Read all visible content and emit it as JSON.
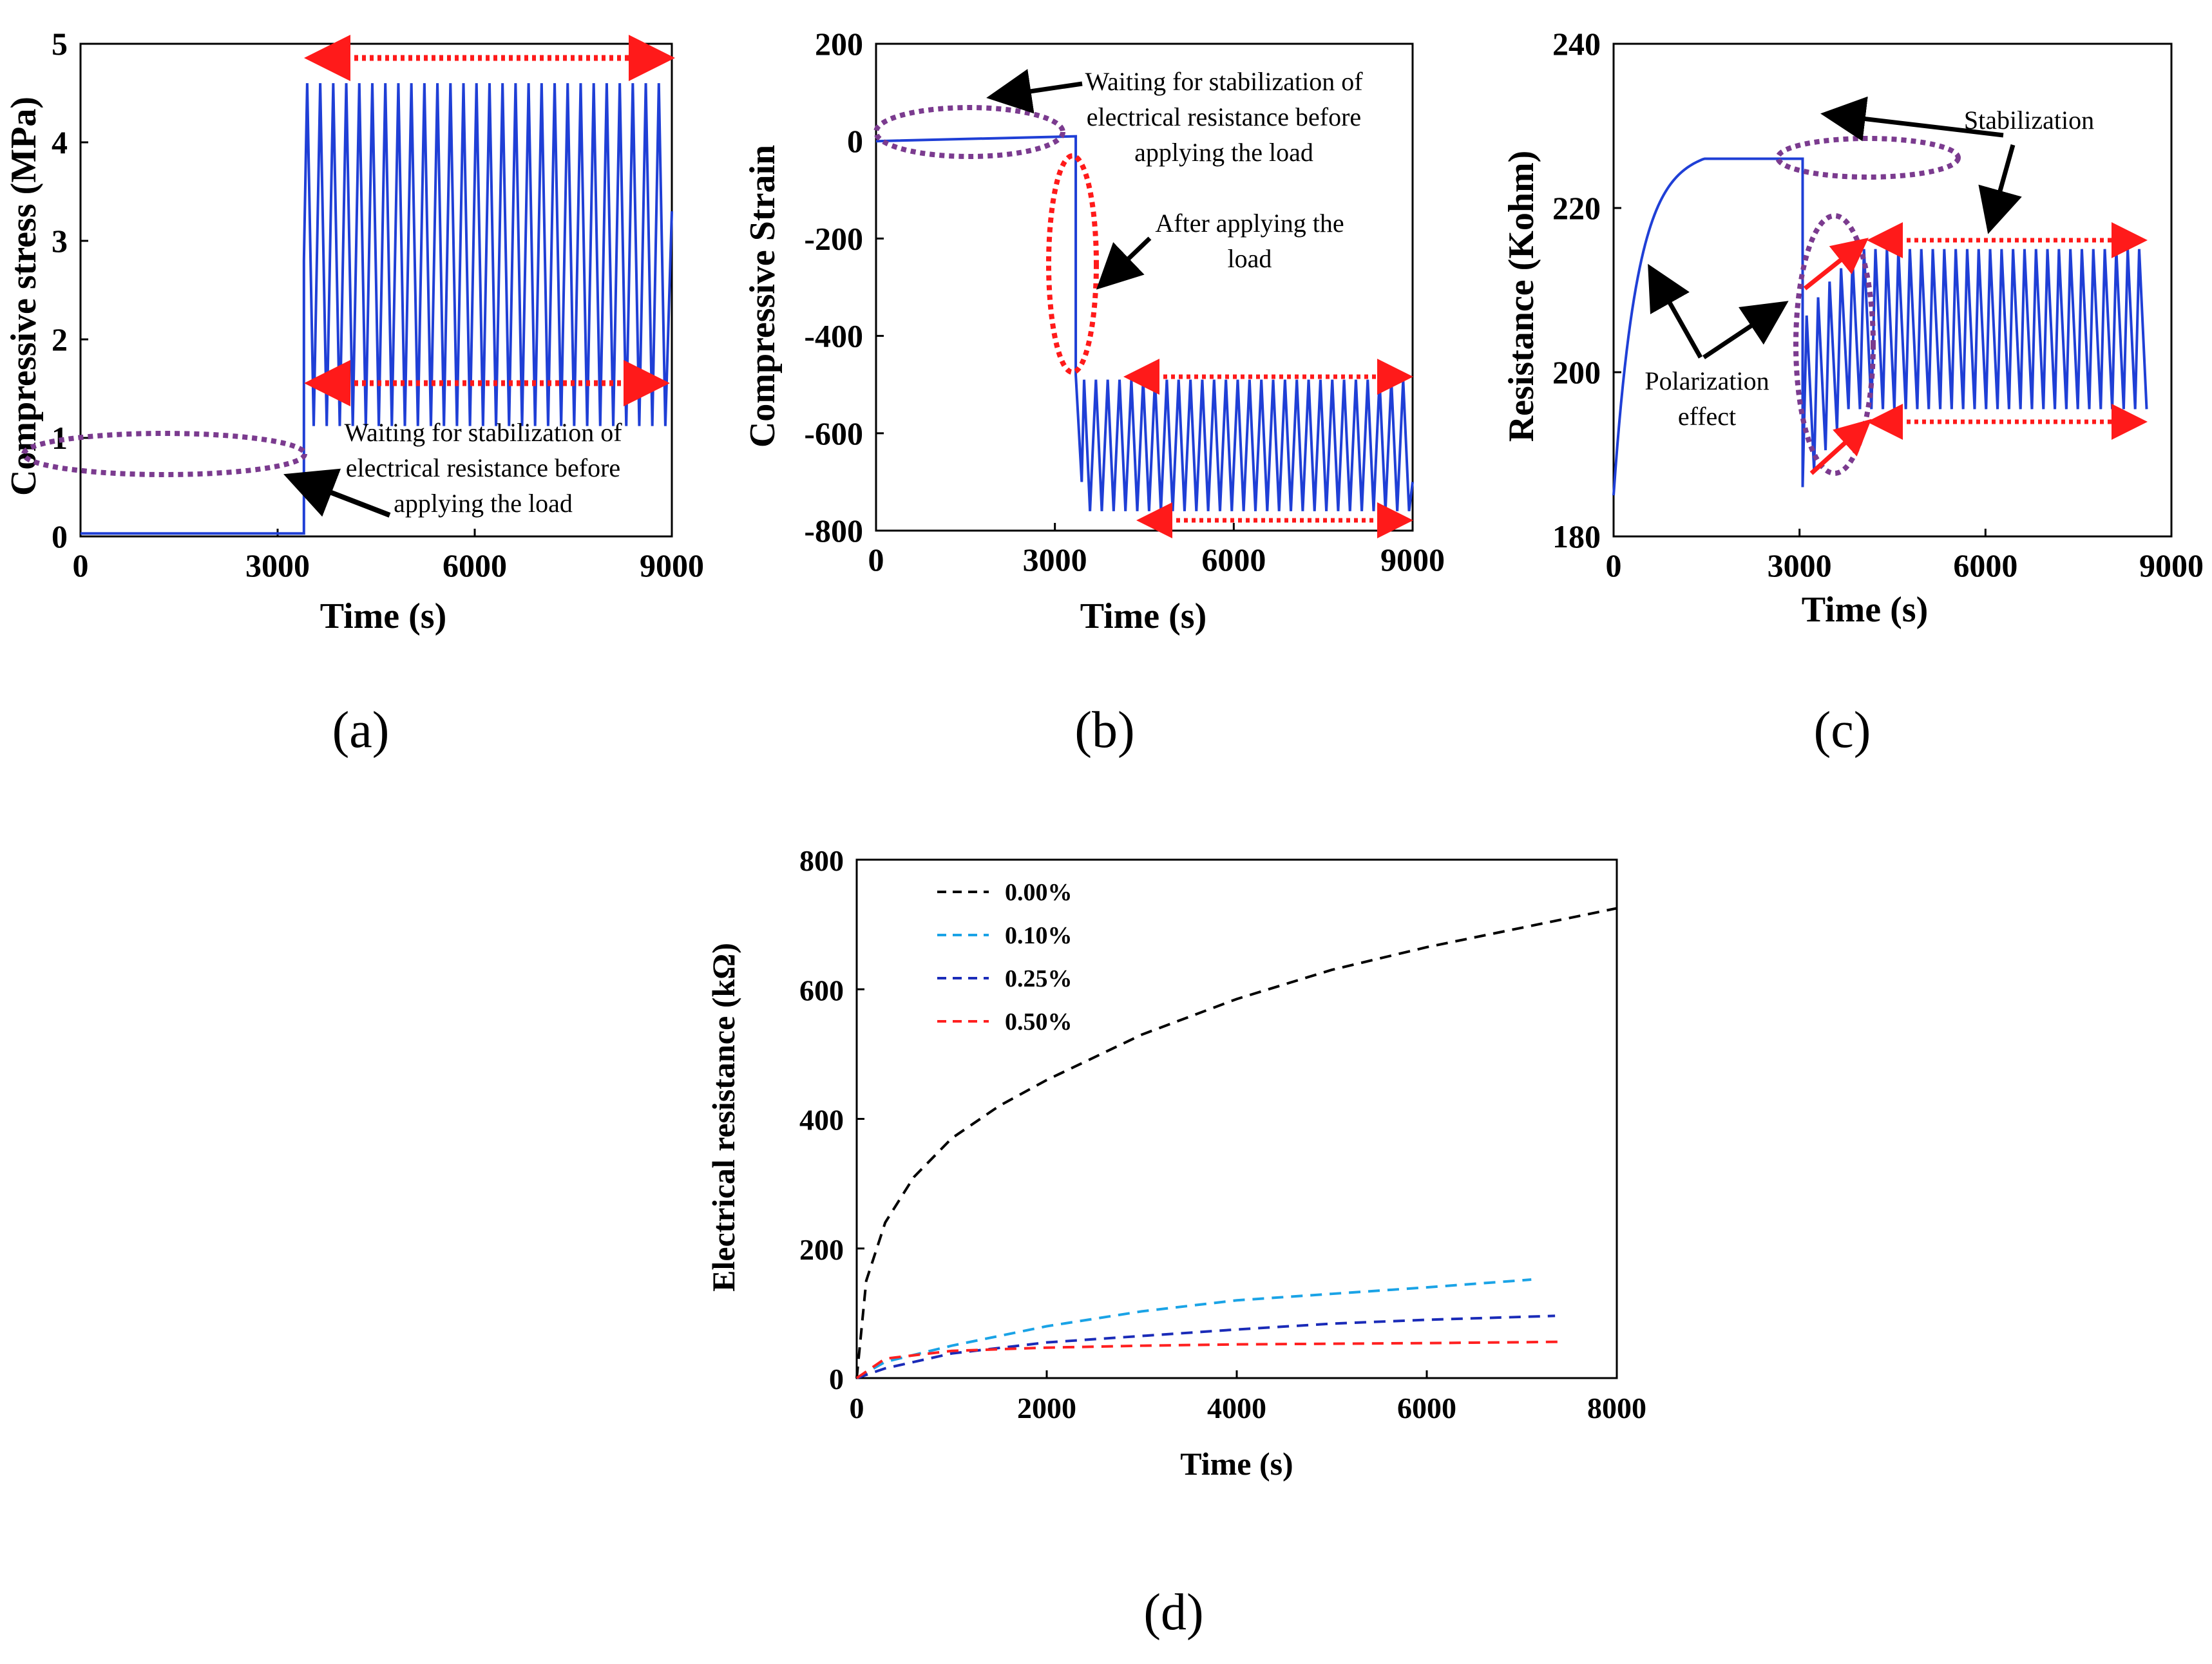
{
  "chart_data": [
    {
      "id": "a",
      "type": "line",
      "caption": "(a)",
      "xlabel": "Time (s)",
      "ylabel": "Compressive stress (MPa)",
      "xlim": [
        0,
        9000
      ],
      "ylim": [
        0,
        5
      ],
      "xticks": [
        "0",
        "3000",
        "6000",
        "9000"
      ],
      "yticks": [
        "0",
        "1",
        "2",
        "3",
        "4",
        "5"
      ],
      "series": [
        {
          "name": "stress",
          "color": "#1f3fd6",
          "rest_until": 3400,
          "rest_value": 0.03,
          "step_value": 2.8,
          "cycle_start": 3450,
          "cycle_end": 9000,
          "cycles": 28,
          "min": 1.12,
          "max": 4.6
        }
      ],
      "annotations": [
        "Waiting for stabilization of",
        "electrical resistance before",
        "applying the load"
      ]
    },
    {
      "id": "b",
      "type": "line",
      "caption": "(b)",
      "xlabel": "Time (s)",
      "ylabel": "Compressive Strain",
      "xlim": [
        0,
        9000
      ],
      "ylim": [
        -800,
        200
      ],
      "xticks": [
        "0",
        "3000",
        "6000",
        "9000"
      ],
      "yticks": [
        "-800",
        "-600",
        "-400",
        "-200",
        "0",
        "200"
      ],
      "series": [
        {
          "name": "strain",
          "color": "#1f3fd6",
          "rest_start": 0,
          "rest_end_value": 10,
          "rest_until": 3350,
          "drop_to": -480,
          "cycle_start": 3450,
          "cycle_end": 9000,
          "cycles": 28,
          "min": -760,
          "max": -490
        }
      ],
      "annotations": [
        "Waiting for stabilization of",
        "electrical resistance before",
        "applying the load",
        "After applying the",
        "load"
      ]
    },
    {
      "id": "c",
      "type": "line",
      "caption": "(c)",
      "xlabel": "Time (s)",
      "ylabel": "Resistance (Kohm)",
      "xlim": [
        0,
        9000
      ],
      "ylim": [
        180,
        240
      ],
      "xticks": [
        "0",
        "3000",
        "6000",
        "9000"
      ],
      "yticks": [
        "180",
        "200",
        "220",
        "240"
      ],
      "series": [
        {
          "name": "resistance",
          "color": "#1f3fd6",
          "start": 185,
          "plateau": 226,
          "rest_until": 3050,
          "drop_to": 186,
          "cycle_start": 3050,
          "cycle_end": 8600,
          "cycles": 30,
          "min": 195.5,
          "max": 215
        }
      ],
      "annotations": [
        "Stabilization",
        "Polarization",
        "effect"
      ]
    },
    {
      "id": "d",
      "type": "line",
      "caption": "(d)",
      "xlabel": "Time (s)",
      "ylabel": "Electrical resistance (kΩ)",
      "xlim": [
        0,
        8000
      ],
      "ylim": [
        0,
        800
      ],
      "xticks": [
        "0",
        "2000",
        "4000",
        "6000",
        "8000"
      ],
      "yticks": [
        "0",
        "200",
        "400",
        "600",
        "800"
      ],
      "series": [
        {
          "name": "0.00%",
          "color": "#000000",
          "x": [
            0,
            100,
            300,
            600,
            1000,
            1500,
            2000,
            3000,
            4000,
            5000,
            6000,
            7000,
            8000
          ],
          "y": [
            0,
            150,
            240,
            310,
            370,
            420,
            460,
            530,
            585,
            630,
            665,
            695,
            725
          ]
        },
        {
          "name": "0.10%",
          "color": "#1aa3e6",
          "x": [
            0,
            300,
            1000,
            2000,
            3000,
            4000,
            5000,
            6000,
            7100
          ],
          "y": [
            0,
            25,
            50,
            80,
            103,
            120,
            130,
            140,
            152
          ]
        },
        {
          "name": "0.25%",
          "color": "#1a2bb8",
          "x": [
            0,
            300,
            1000,
            2000,
            3000,
            4000,
            5000,
            6000,
            7350
          ],
          "y": [
            0,
            15,
            38,
            55,
            65,
            75,
            84,
            90,
            96
          ]
        },
        {
          "name": "0.50%",
          "color": "#ff2020",
          "x": [
            0,
            300,
            1000,
            2000,
            3000,
            4000,
            5000,
            6000,
            7450
          ],
          "y": [
            0,
            30,
            42,
            47,
            50,
            52,
            53,
            54,
            56
          ]
        }
      ]
    }
  ]
}
